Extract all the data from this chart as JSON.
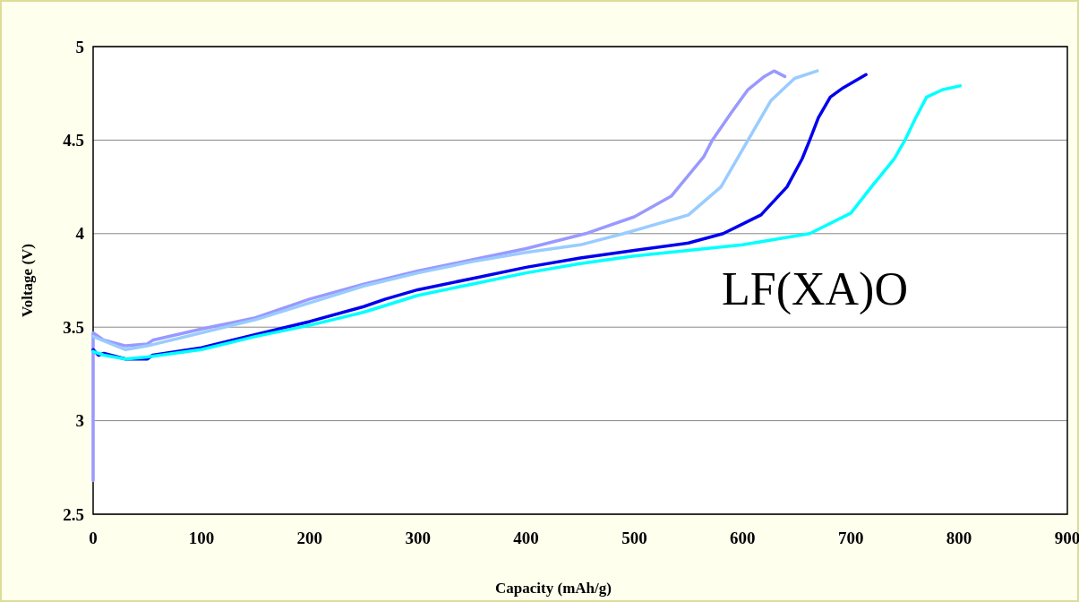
{
  "chart_data": {
    "type": "line",
    "xlabel": "Capacity (mAh/g)",
    "ylabel": "Voltage (V)",
    "xlim": [
      0,
      900
    ],
    "xticks": [
      0,
      100,
      200,
      300,
      400,
      500,
      600,
      700,
      800,
      900
    ],
    "ylim": [
      2.5,
      5
    ],
    "yticks": [
      2.5,
      3,
      3.5,
      4,
      4.5,
      5
    ],
    "grid": "y",
    "marker": "none",
    "line_style": "solid",
    "annotations": [
      "LF(XA)O"
    ],
    "series": [
      {
        "color": "#9999ff",
        "x": [
          0,
          0,
          10,
          30,
          50,
          55,
          100,
          150,
          200,
          250,
          300,
          350,
          400,
          455,
          500,
          534,
          564,
          572,
          590,
          605,
          620,
          629,
          639
        ],
        "values": [
          2.68,
          3.47,
          3.43,
          3.4,
          3.41,
          3.43,
          3.49,
          3.55,
          3.65,
          3.73,
          3.8,
          3.86,
          3.92,
          4.0,
          4.09,
          4.2,
          4.41,
          4.5,
          4.65,
          4.77,
          4.84,
          4.87,
          4.84
        ]
      },
      {
        "color": "#99ccff",
        "x": [
          0,
          30,
          50,
          100,
          150,
          200,
          250,
          300,
          350,
          400,
          450,
          490,
          550,
          580,
          605,
          626,
          648,
          669
        ],
        "values": [
          3.45,
          3.38,
          3.4,
          3.47,
          3.54,
          3.63,
          3.72,
          3.79,
          3.85,
          3.9,
          3.94,
          4.0,
          4.1,
          4.25,
          4.5,
          4.71,
          4.83,
          4.87
        ]
      },
      {
        "color": "#0000ee",
        "x": [
          0,
          5,
          10,
          30,
          50,
          55,
          100,
          150,
          200,
          250,
          270,
          300,
          350,
          400,
          450,
          500,
          550,
          582,
          617,
          641,
          655,
          662,
          670,
          681,
          693,
          714
        ],
        "values": [
          3.38,
          3.35,
          3.36,
          3.33,
          3.33,
          3.35,
          3.39,
          3.46,
          3.53,
          3.61,
          3.65,
          3.7,
          3.76,
          3.82,
          3.87,
          3.91,
          3.95,
          4.0,
          4.1,
          4.25,
          4.4,
          4.5,
          4.62,
          4.73,
          4.78,
          4.85
        ]
      },
      {
        "color": "#00ffff",
        "x": [
          0,
          10,
          30,
          50,
          100,
          150,
          200,
          250,
          300,
          350,
          400,
          450,
          500,
          550,
          600,
          662,
          700,
          719,
          740,
          750,
          760,
          770,
          785,
          801
        ],
        "values": [
          3.37,
          3.35,
          3.33,
          3.34,
          3.38,
          3.45,
          3.51,
          3.58,
          3.67,
          3.73,
          3.79,
          3.84,
          3.88,
          3.91,
          3.94,
          4.0,
          4.11,
          4.25,
          4.4,
          4.5,
          4.62,
          4.73,
          4.77,
          4.79
        ]
      }
    ]
  }
}
